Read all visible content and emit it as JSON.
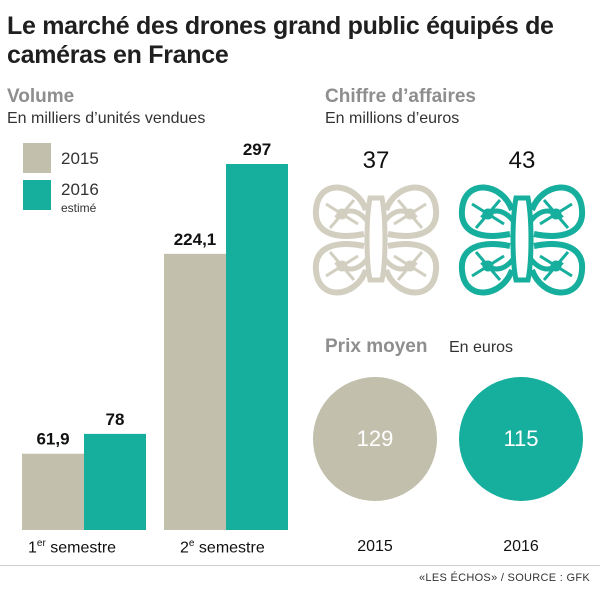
{
  "title": "Le marché des drones grand public équipés de caméras  en France",
  "volume": {
    "title": "Volume",
    "subtitle": "En milliers d’unités vendues",
    "legend": [
      {
        "label": "2015",
        "note": "",
        "color": "#c2bfac"
      },
      {
        "label": "2016",
        "note": "estimé",
        "color": "#16ae9c"
      }
    ],
    "categories": [
      {
        "main": "1",
        "sup": "er",
        "rest": " semestre"
      },
      {
        "main": "2",
        "sup": "e",
        "rest": " semestre"
      }
    ]
  },
  "chart_data": {
    "type": "bar",
    "categories": [
      "1er semestre",
      "2e semestre"
    ],
    "series": [
      {
        "name": "2015",
        "values": [
          61.9,
          224.1
        ],
        "labels": [
          "61,9",
          "224,1"
        ],
        "color": "#c2bfac"
      },
      {
        "name": "2016",
        "values": [
          78,
          297
        ],
        "labels": [
          "78",
          "297"
        ],
        "color": "#16ae9c"
      }
    ],
    "title": "Volume",
    "ylabel": "En milliers d’unités vendues",
    "ylim": [
      0,
      297
    ],
    "grid": false,
    "legend": "top-left"
  },
  "revenue": {
    "title": "Chiffre d’affaires",
    "subtitle": "En millions d’euros",
    "values": [
      {
        "year": "2015",
        "value": "37",
        "color": "#d2cfc0"
      },
      {
        "year": "2016",
        "value": "43",
        "color": "#16ae9c"
      }
    ],
    "icon": "drone-icon"
  },
  "price": {
    "title": "Prix moyen",
    "subtitle": "En euros",
    "values": [
      {
        "year": "2015",
        "value": "129",
        "color": "#c2bfac"
      },
      {
        "year": "2016",
        "value": "115",
        "color": "#16ae9c"
      }
    ]
  },
  "years": [
    "2015",
    "2016"
  ],
  "footer": "«LES ÉCHOS» / SOURCE : GFK"
}
